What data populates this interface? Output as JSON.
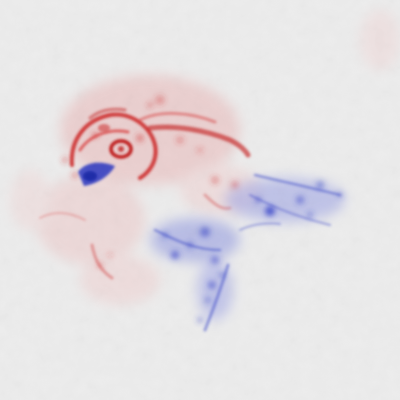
{
  "image": {
    "kind": "attribution-heatmap",
    "subject": "bird",
    "colors": {
      "background": "#ececec",
      "positive": "#d21e1e",
      "negative": "#2633c8"
    }
  }
}
